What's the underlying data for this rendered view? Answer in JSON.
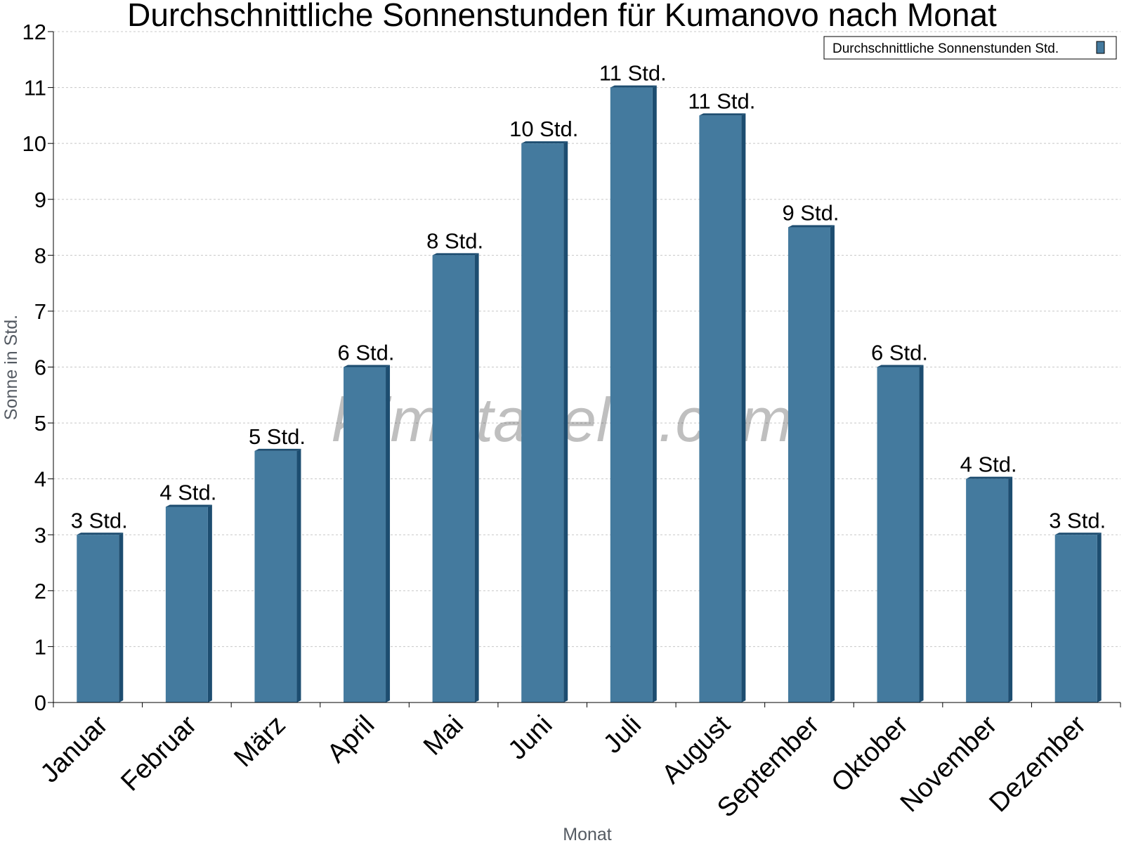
{
  "chart_data": {
    "type": "bar",
    "title": "Durchschnittliche Sonnenstunden für Kumanovo nach Monat",
    "xlabel": "Monat",
    "ylabel": "Sonne in Std.",
    "ylim": [
      0,
      12
    ],
    "y_ticks": [
      "0",
      "1",
      "2",
      "3",
      "4",
      "5",
      "6",
      "7",
      "8",
      "9",
      "10",
      "11",
      "12"
    ],
    "grid": true,
    "legend_position": "top-right",
    "categories": [
      "Januar",
      "Februar",
      "März",
      "April",
      "Mai",
      "Juni",
      "Juli",
      "August",
      "September",
      "Oktober",
      "November",
      "Dezember"
    ],
    "series": [
      {
        "name": "Durchschnittliche Sonnenstunden Std.",
        "color": "#447a9e",
        "values": [
          3,
          3.5,
          4.5,
          6,
          8,
          10,
          11,
          10.5,
          8.5,
          6,
          4,
          3
        ],
        "data_labels": [
          "3 Std.",
          "4 Std.",
          "5 Std.",
          "6 Std.",
          "8 Std.",
          "10 Std.",
          "11 Std.",
          "11 Std.",
          "9 Std.",
          "6 Std.",
          "4 Std.",
          "3 Std."
        ]
      }
    ],
    "watermark": "klimatabelle.com"
  }
}
